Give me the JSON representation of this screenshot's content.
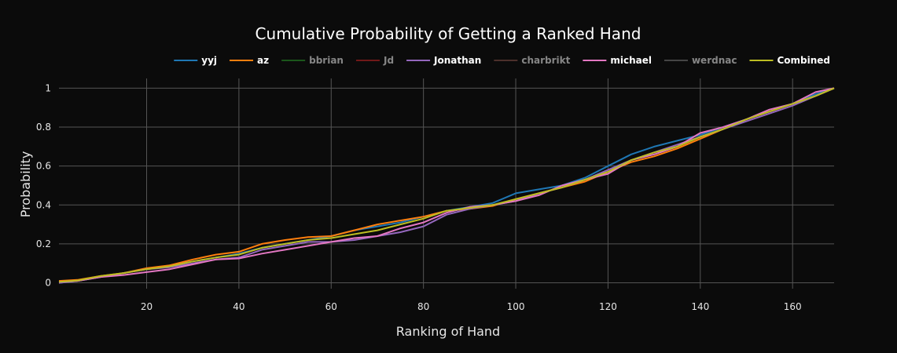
{
  "chart_data": {
    "type": "line",
    "title": "Cumulative Probability of Getting a Ranked Hand",
    "xlabel": "Ranking of Hand",
    "ylabel": "Probability",
    "xlim": [
      1,
      169
    ],
    "ylim": [
      -0.03,
      1.05
    ],
    "xticks": [
      20,
      40,
      60,
      80,
      100,
      120,
      140,
      160
    ],
    "yticks": [
      0,
      0.2,
      0.4,
      0.6,
      0.8,
      1
    ],
    "ytick_labels": [
      "0",
      "0.2",
      "0.4",
      "0.6",
      "0.8",
      "1"
    ],
    "grid": true,
    "legend_position": "top-right",
    "series": [
      {
        "name": "yyj",
        "color": "#1f77b4",
        "visible": true,
        "x": [
          1,
          5,
          10,
          15,
          20,
          25,
          30,
          35,
          40,
          45,
          50,
          55,
          60,
          65,
          70,
          75,
          80,
          85,
          90,
          95,
          100,
          105,
          110,
          115,
          120,
          125,
          130,
          135,
          140,
          145,
          150,
          155,
          160,
          165,
          169
        ],
        "y": [
          0,
          0.01,
          0.03,
          0.05,
          0.07,
          0.09,
          0.11,
          0.13,
          0.15,
          0.18,
          0.2,
          0.22,
          0.24,
          0.27,
          0.29,
          0.31,
          0.34,
          0.37,
          0.39,
          0.41,
          0.46,
          0.48,
          0.5,
          0.54,
          0.6,
          0.66,
          0.7,
          0.73,
          0.76,
          0.8,
          0.84,
          0.88,
          0.92,
          0.97,
          1
        ]
      },
      {
        "name": "az",
        "color": "#ff7f0e",
        "visible": true,
        "x": [
          1,
          5,
          10,
          15,
          20,
          25,
          30,
          35,
          40,
          45,
          50,
          55,
          60,
          65,
          70,
          75,
          80,
          85,
          90,
          95,
          100,
          105,
          110,
          115,
          120,
          125,
          130,
          135,
          140,
          145,
          150,
          155,
          160,
          165,
          169
        ],
        "y": [
          0.01,
          0.015,
          0.035,
          0.05,
          0.075,
          0.09,
          0.12,
          0.145,
          0.16,
          0.2,
          0.22,
          0.235,
          0.24,
          0.27,
          0.3,
          0.32,
          0.34,
          0.37,
          0.38,
          0.395,
          0.43,
          0.46,
          0.49,
          0.52,
          0.57,
          0.62,
          0.65,
          0.69,
          0.74,
          0.79,
          0.84,
          0.88,
          0.92,
          0.96,
          1
        ]
      },
      {
        "name": "bbrian",
        "color": "#2ca02c",
        "visible": false,
        "x": [
          1,
          169
        ],
        "y": [
          0,
          1
        ]
      },
      {
        "name": "Jd",
        "color": "#d62728",
        "visible": false,
        "x": [
          1,
          169
        ],
        "y": [
          0,
          1
        ]
      },
      {
        "name": "Jonathan",
        "color": "#9467bd",
        "visible": true,
        "x": [
          1,
          5,
          10,
          15,
          20,
          25,
          30,
          35,
          40,
          45,
          50,
          55,
          60,
          65,
          70,
          75,
          80,
          85,
          90,
          95,
          100,
          105,
          110,
          115,
          120,
          125,
          130,
          135,
          140,
          145,
          150,
          155,
          160,
          165,
          169
        ],
        "y": [
          0,
          0.01,
          0.03,
          0.05,
          0.07,
          0.08,
          0.1,
          0.12,
          0.13,
          0.17,
          0.19,
          0.21,
          0.21,
          0.22,
          0.24,
          0.26,
          0.29,
          0.35,
          0.38,
          0.4,
          0.42,
          0.46,
          0.49,
          0.53,
          0.58,
          0.63,
          0.67,
          0.71,
          0.75,
          0.79,
          0.83,
          0.87,
          0.91,
          0.96,
          1
        ]
      },
      {
        "name": "charbrikt",
        "color": "#8c564b",
        "visible": false,
        "x": [
          1,
          169
        ],
        "y": [
          0,
          1
        ]
      },
      {
        "name": "michael",
        "color": "#e377c2",
        "visible": true,
        "x": [
          1,
          5,
          10,
          15,
          20,
          25,
          30,
          35,
          40,
          45,
          50,
          55,
          60,
          65,
          70,
          75,
          80,
          85,
          90,
          95,
          100,
          105,
          110,
          115,
          120,
          125,
          130,
          135,
          140,
          145,
          150,
          155,
          160,
          165,
          169
        ],
        "y": [
          0.005,
          0.01,
          0.03,
          0.04,
          0.055,
          0.07,
          0.095,
          0.12,
          0.125,
          0.15,
          0.17,
          0.19,
          0.21,
          0.23,
          0.24,
          0.28,
          0.31,
          0.36,
          0.39,
          0.4,
          0.42,
          0.45,
          0.5,
          0.53,
          0.56,
          0.63,
          0.66,
          0.7,
          0.77,
          0.8,
          0.84,
          0.89,
          0.92,
          0.98,
          1
        ]
      },
      {
        "name": "werdnac",
        "color": "#7f7f7f",
        "visible": false,
        "x": [
          1,
          169
        ],
        "y": [
          0,
          1
        ]
      },
      {
        "name": "Combined",
        "color": "#bcbd22",
        "visible": true,
        "x": [
          1,
          5,
          10,
          15,
          20,
          25,
          30,
          35,
          40,
          45,
          50,
          55,
          60,
          65,
          70,
          75,
          80,
          85,
          90,
          95,
          100,
          105,
          110,
          115,
          120,
          125,
          130,
          135,
          140,
          145,
          150,
          155,
          160,
          165,
          169
        ],
        "y": [
          0.005,
          0.012,
          0.035,
          0.05,
          0.07,
          0.085,
          0.11,
          0.13,
          0.145,
          0.18,
          0.2,
          0.22,
          0.23,
          0.25,
          0.27,
          0.3,
          0.33,
          0.37,
          0.385,
          0.4,
          0.43,
          0.46,
          0.49,
          0.53,
          0.57,
          0.63,
          0.67,
          0.7,
          0.75,
          0.79,
          0.84,
          0.88,
          0.92,
          0.96,
          1
        ]
      }
    ]
  }
}
